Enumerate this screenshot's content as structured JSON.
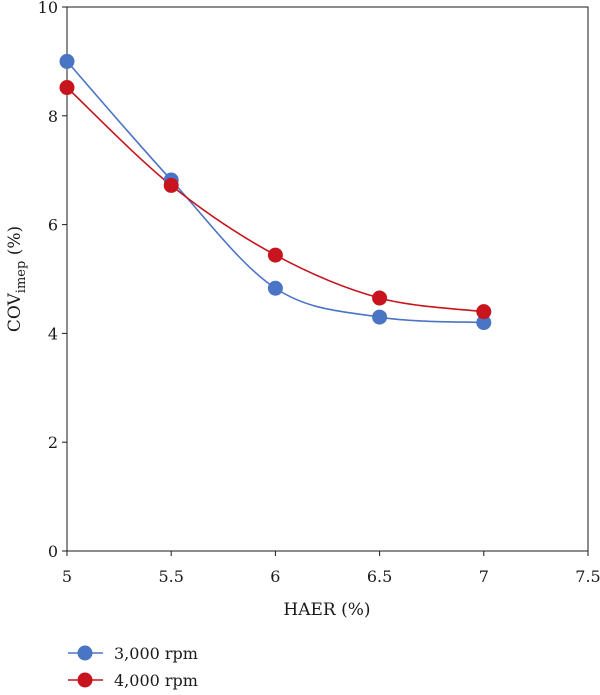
{
  "chart_data": {
    "type": "line",
    "xlabel": "HAER (%)",
    "ylabel_main": "COV",
    "ylabel_sub": "imep",
    "ylabel_suffix": " (%)",
    "xlim": [
      5,
      7.5
    ],
    "ylim": [
      0,
      10
    ],
    "xticks": [
      5,
      5.5,
      6,
      6.5,
      7,
      7.5
    ],
    "xtick_labels": [
      "5",
      "5.5",
      "6",
      "6.5",
      "7",
      "7.5"
    ],
    "yticks": [
      0,
      2,
      4,
      6,
      8,
      10
    ],
    "ytick_labels": [
      "0",
      "2",
      "4",
      "6",
      "8",
      "10"
    ],
    "grid": false,
    "legend_position": "bottom-left",
    "x": [
      5,
      5.5,
      6,
      6.5,
      7
    ],
    "series": [
      {
        "name": "3,000 rpm",
        "color": "#4a74c4",
        "values": [
          9.0,
          6.82,
          4.83,
          4.3,
          4.2
        ]
      },
      {
        "name": "4,000 rpm",
        "color": "#c8141e",
        "values": [
          8.52,
          6.72,
          5.44,
          4.65,
          4.4
        ]
      }
    ]
  }
}
